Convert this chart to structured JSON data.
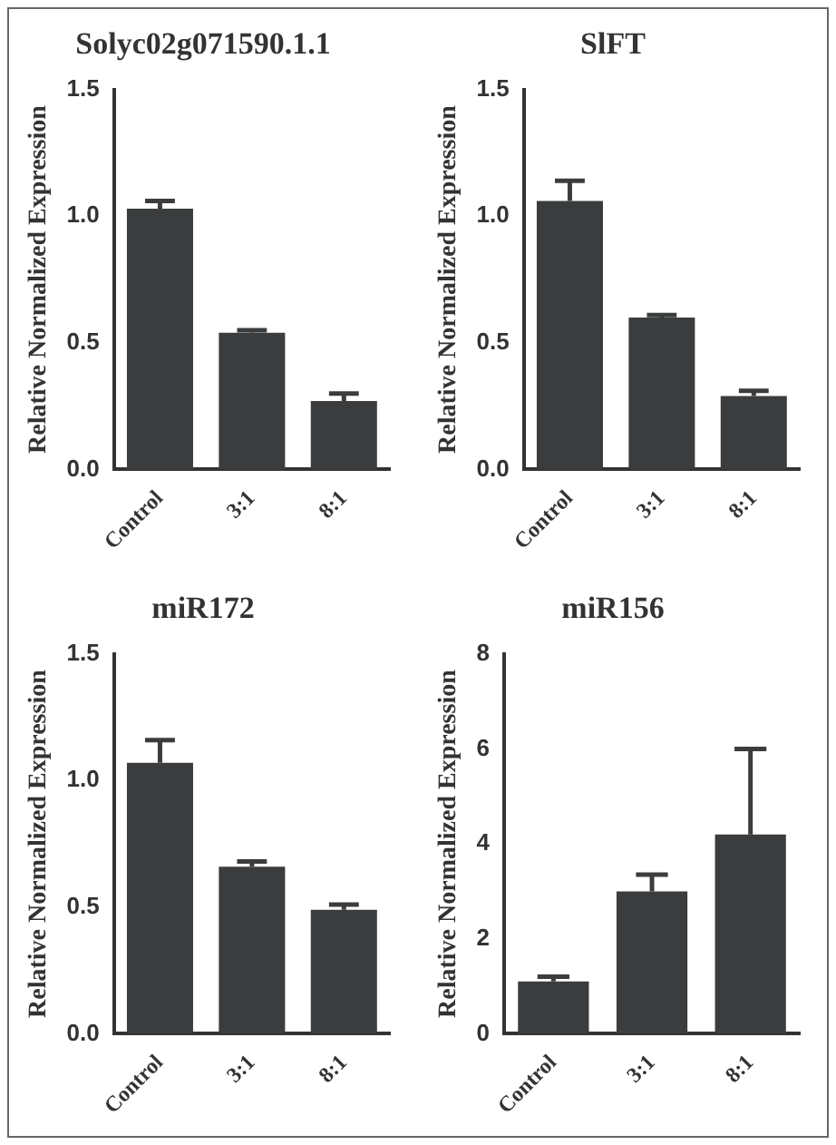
{
  "chart_data": [
    {
      "type": "bar",
      "title": "Solyc02g071590.1.1",
      "ylabel": "Relative Normalized Expression",
      "categories": [
        "Control",
        "3:1",
        "8:1"
      ],
      "values": [
        1.03,
        0.54,
        0.27
      ],
      "errors": [
        [
          1.03,
          1.06
        ],
        [
          0.54,
          0.55
        ],
        [
          0.27,
          0.3
        ]
      ],
      "color": "#3b3c3e",
      "ylim": [
        0,
        1.5
      ],
      "yticks": [
        {
          "value": 0,
          "label": "0.0"
        },
        {
          "value": 0.5,
          "label": "0.5"
        },
        {
          "value": 1,
          "label": "1.0"
        },
        {
          "value": 1.5,
          "label": "1.5"
        }
      ]
    },
    {
      "type": "bar",
      "title": "SlFT",
      "ylabel": "Relative Normalized Expression",
      "categories": [
        "Control",
        "3:1",
        "8:1"
      ],
      "values": [
        1.06,
        0.6,
        0.29
      ],
      "errors": [
        [
          1.06,
          1.14
        ],
        [
          0.6,
          0.61
        ],
        [
          0.29,
          0.31
        ]
      ],
      "color": "#3b3c3e",
      "ylim": [
        0,
        1.5
      ],
      "yticks": [
        {
          "value": 0,
          "label": "0.0"
        },
        {
          "value": 0.5,
          "label": "0.5"
        },
        {
          "value": 1,
          "label": "1.0"
        },
        {
          "value": 1.5,
          "label": "1.5"
        }
      ]
    },
    {
      "type": "bar",
      "title": "miR172",
      "ylabel": "Relative Normalized Expression",
      "categories": [
        "Control",
        "3:1",
        "8:1"
      ],
      "values": [
        1.07,
        0.66,
        0.49
      ],
      "errors": [
        [
          1.07,
          1.16
        ],
        [
          0.66,
          0.68
        ],
        [
          0.49,
          0.51
        ]
      ],
      "color": "#3b3c3e",
      "ylim": [
        0,
        1.5
      ],
      "yticks": [
        {
          "value": 0,
          "label": "0.0"
        },
        {
          "value": 0.5,
          "label": "0.5"
        },
        {
          "value": 1,
          "label": "1.0"
        },
        {
          "value": 1.5,
          "label": "1.5"
        }
      ]
    },
    {
      "type": "bar",
      "title": "miR156",
      "ylabel": "Relative Normalized Expression",
      "categories": [
        "Control",
        "3:1",
        "8:1"
      ],
      "values": [
        1.1,
        3.0,
        4.2
      ],
      "errors": [
        [
          1.1,
          1.2
        ],
        [
          3.0,
          3.35
        ],
        [
          4.2,
          6.0
        ]
      ],
      "color": "#3b3c3e",
      "ylim": [
        0,
        8
      ],
      "yticks": [
        0,
        2,
        4,
        6,
        8
      ]
    }
  ]
}
